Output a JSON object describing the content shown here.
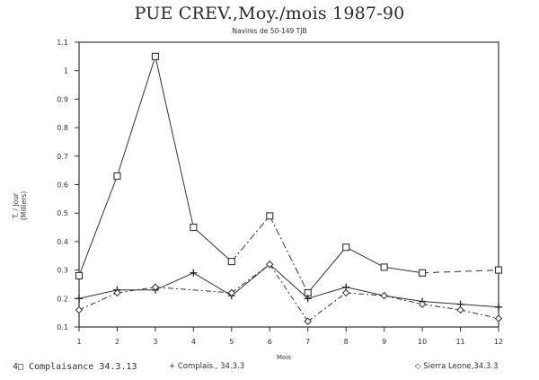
{
  "chart_data": {
    "type": "line",
    "title": "PUE CREV.,Moy./mois 1987-90",
    "subtitle": "Navires de 50-149 TJB",
    "xlabel": "Mois",
    "ylabel": "T. / Jour (Milliers)",
    "x": [
      1,
      2,
      3,
      4,
      5,
      6,
      7,
      8,
      9,
      10,
      11,
      12
    ],
    "ylim": [
      0.1,
      1.1
    ],
    "yticks": [
      "0.1",
      "0.2",
      "0.3",
      "0.4",
      "0.5",
      "0.6",
      "0.7",
      "0.8",
      "0.9",
      "1",
      "1.1"
    ],
    "xticks": [
      "1",
      "2",
      "3",
      "4",
      "5",
      "6",
      "7",
      "8",
      "9",
      "10",
      "11",
      "12"
    ],
    "grid": false,
    "legend_position": "bottom",
    "series": [
      {
        "name": "Complaisance 34.3.13",
        "marker": "square",
        "values": [
          0.28,
          0.63,
          1.05,
          0.45,
          0.33,
          0.49,
          0.22,
          0.38,
          0.31,
          0.29,
          null,
          0.3
        ]
      },
      {
        "name": "Complais., 34.3.3",
        "marker": "plus",
        "values": [
          0.2,
          0.23,
          0.23,
          0.29,
          0.21,
          0.32,
          0.2,
          0.24,
          0.21,
          0.19,
          0.18,
          0.17
        ]
      },
      {
        "name": "Sierra Leone,34.3.3",
        "marker": "diamond",
        "values": [
          0.16,
          0.22,
          0.24,
          null,
          0.22,
          0.32,
          0.12,
          0.22,
          0.21,
          0.18,
          0.16,
          0.13
        ]
      }
    ]
  },
  "legend": {
    "item1": "4□ Complaisance 34.3.13",
    "item2": "+      Complais., 34.3.3",
    "item3": "◇   Sierra Leone,34.3.3"
  }
}
